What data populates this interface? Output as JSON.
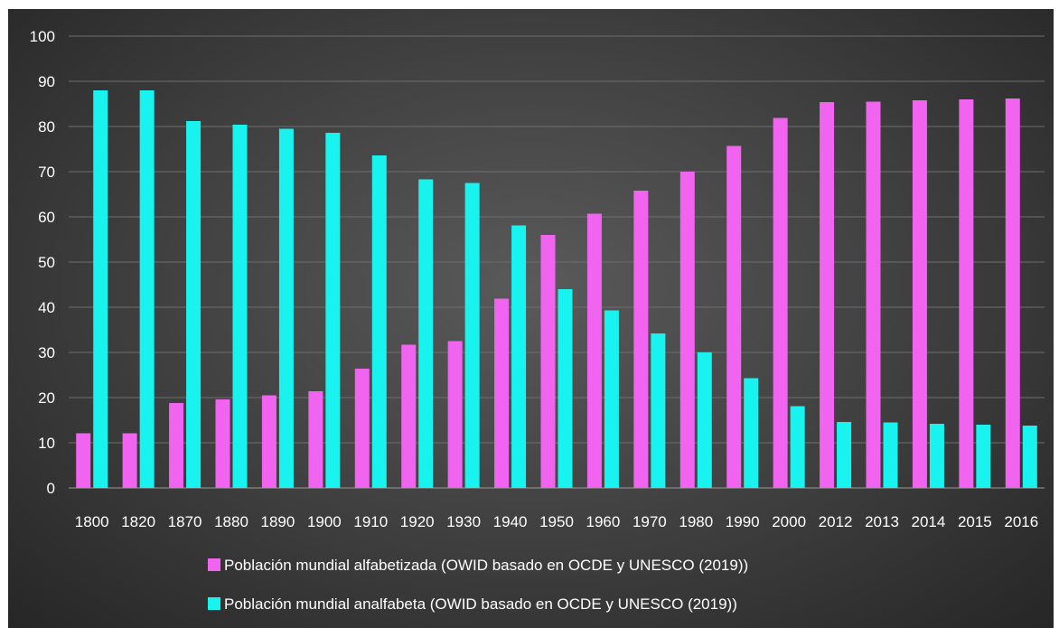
{
  "chart_data": {
    "type": "bar",
    "categories": [
      "1800",
      "1820",
      "1870",
      "1880",
      "1890",
      "1900",
      "1910",
      "1920",
      "1930",
      "1940",
      "1950",
      "1960",
      "1970",
      "1980",
      "1990",
      "2000",
      "2012",
      "2013",
      "2014",
      "2015",
      "2016"
    ],
    "series": [
      {
        "name": "Población mundial alfabetizada (OWID basado en OCDE y UNESCO (2019))",
        "color": "#f064f0",
        "values": [
          12.1,
          12.1,
          18.8,
          19.6,
          20.5,
          21.4,
          26.4,
          31.7,
          32.5,
          41.9,
          56.0,
          60.7,
          65.8,
          70.0,
          75.7,
          81.9,
          85.4,
          85.5,
          85.8,
          86.0,
          86.2
        ]
      },
      {
        "name": "Población mundial analfabeta (OWID basado en OCDE y UNESCO (2019))",
        "color": "#19f3f0",
        "values": [
          88.0,
          88.0,
          81.2,
          80.4,
          79.5,
          78.6,
          73.6,
          68.3,
          67.5,
          58.1,
          44.0,
          39.3,
          34.2,
          30.0,
          24.3,
          18.1,
          14.6,
          14.5,
          14.2,
          14.0,
          13.8
        ]
      }
    ],
    "title": "",
    "xlabel": "",
    "ylabel": "",
    "ylim": [
      0,
      100
    ],
    "yticks": [
      0,
      10,
      20,
      30,
      40,
      50,
      60,
      70,
      80,
      90,
      100
    ],
    "grid": true,
    "legend": "bottom"
  }
}
